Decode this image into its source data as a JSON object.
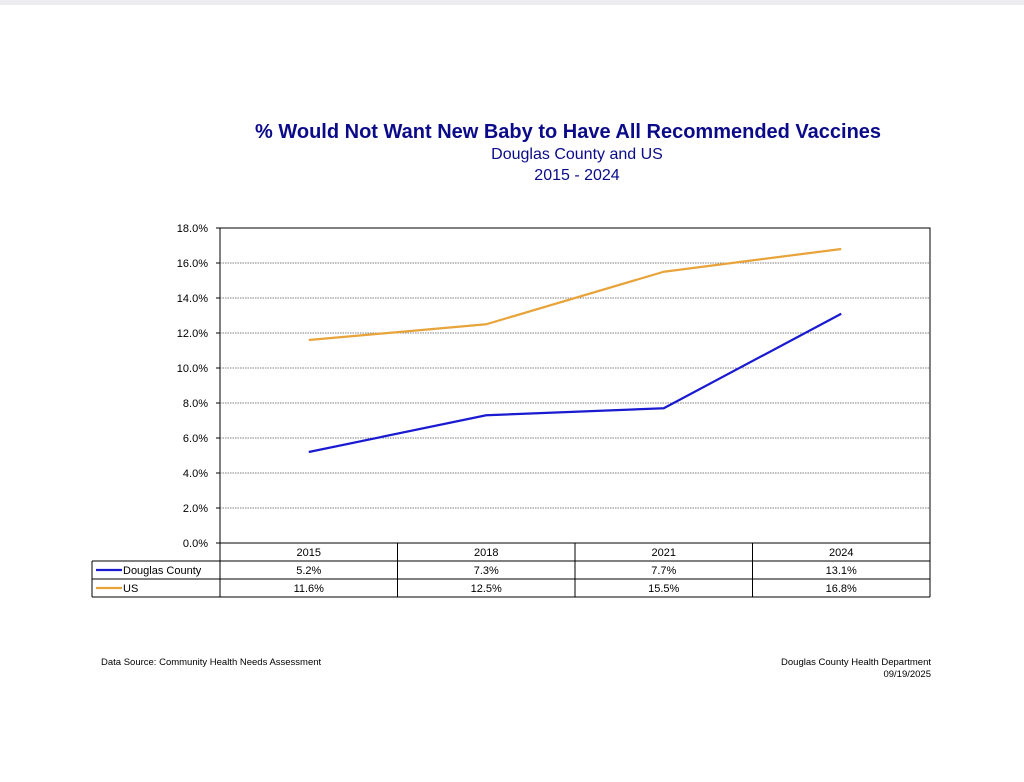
{
  "chart_data": {
    "type": "line",
    "title": "% Would Not Want New Baby to Have All Recommended Vaccines",
    "subtitle": "Douglas County and US",
    "date_range": "2015 - 2024",
    "categories": [
      "2015",
      "2018",
      "2021",
      "2024"
    ],
    "ylim": [
      0,
      18
    ],
    "yticks": [
      "0.0%",
      "2.0%",
      "4.0%",
      "6.0%",
      "8.0%",
      "10.0%",
      "12.0%",
      "14.0%",
      "16.0%",
      "18.0%"
    ],
    "grid": true,
    "legend_placement": "data-table-left",
    "series": [
      {
        "name": "Douglas County",
        "color": "#1a1ad0",
        "values": [
          5.2,
          7.3,
          7.7,
          13.1
        ],
        "labels": [
          "5.2%",
          "7.3%",
          "7.7%",
          "13.1%"
        ]
      },
      {
        "name": "US",
        "color": "#e8a33a",
        "values": [
          11.6,
          12.5,
          15.5,
          16.8
        ],
        "labels": [
          "11.6%",
          "12.5%",
          "15.5%",
          "16.8%"
        ]
      }
    ]
  },
  "footer": {
    "source": "Data Source:  Community Health Needs Assessment",
    "organization": "Douglas County Health Department",
    "date": "09/19/2025"
  }
}
